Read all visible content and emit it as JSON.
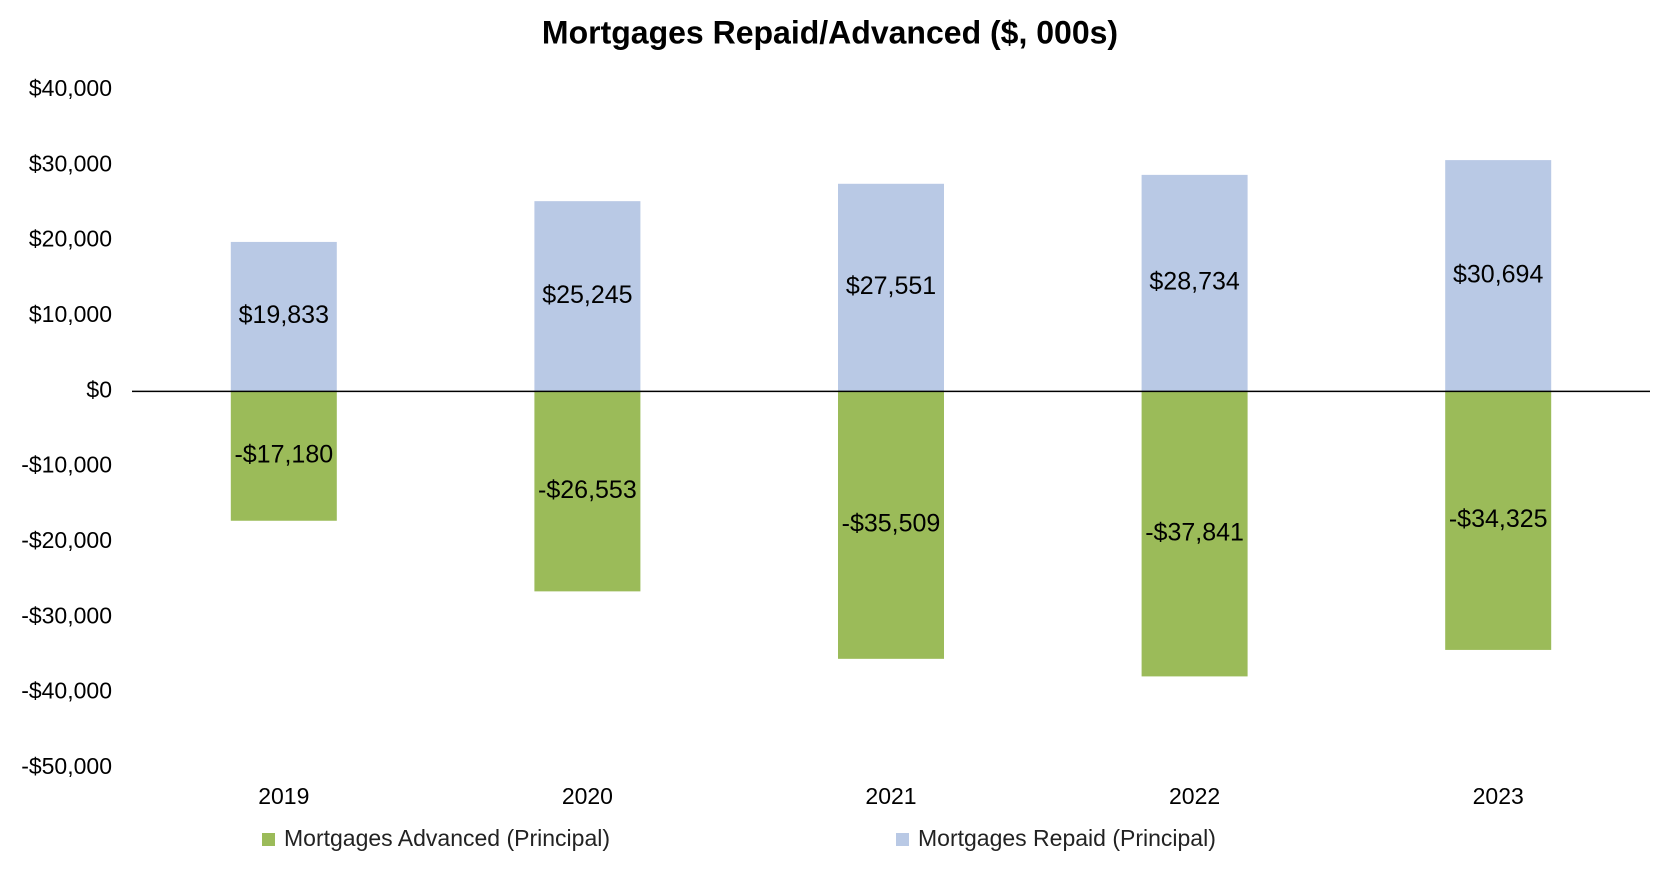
{
  "chart_data": {
    "type": "bar",
    "title": "Mortgages Repaid/Advanced ($, 000s)",
    "categories": [
      "2019",
      "2020",
      "2021",
      "2022",
      "2023"
    ],
    "series": [
      {
        "name": "Mortgages Advanced (Principal)",
        "color": "#9bbb59",
        "values": [
          -17180,
          -26553,
          -35509,
          -37841,
          -34325
        ],
        "value_labels": [
          "-$17,180",
          "-$26,553",
          "-$35,509",
          "-$37,841",
          "-$34,325"
        ]
      },
      {
        "name": "Mortgages Repaid (Principal)",
        "color": "#b9c9e5",
        "values": [
          19833,
          25245,
          27551,
          28734,
          30694
        ],
        "value_labels": [
          "$19,833",
          "$25,245",
          "$27,551",
          "$28,734",
          "$30,694"
        ]
      }
    ],
    "ylim": [
      -50000,
      40000
    ],
    "yticks": [
      {
        "value": 40000,
        "label": "$40,000"
      },
      {
        "value": 30000,
        "label": "$30,000"
      },
      {
        "value": 20000,
        "label": "$20,000"
      },
      {
        "value": 10000,
        "label": "$10,000"
      },
      {
        "value": 0,
        "label": "$0"
      },
      {
        "value": -10000,
        "label": "-$10,000"
      },
      {
        "value": -20000,
        "label": "-$20,000"
      },
      {
        "value": -30000,
        "label": "-$30,000"
      },
      {
        "value": -40000,
        "label": "-$40,000"
      },
      {
        "value": -50000,
        "label": "-$50,000"
      }
    ],
    "grid": false,
    "legend": "bottom"
  }
}
